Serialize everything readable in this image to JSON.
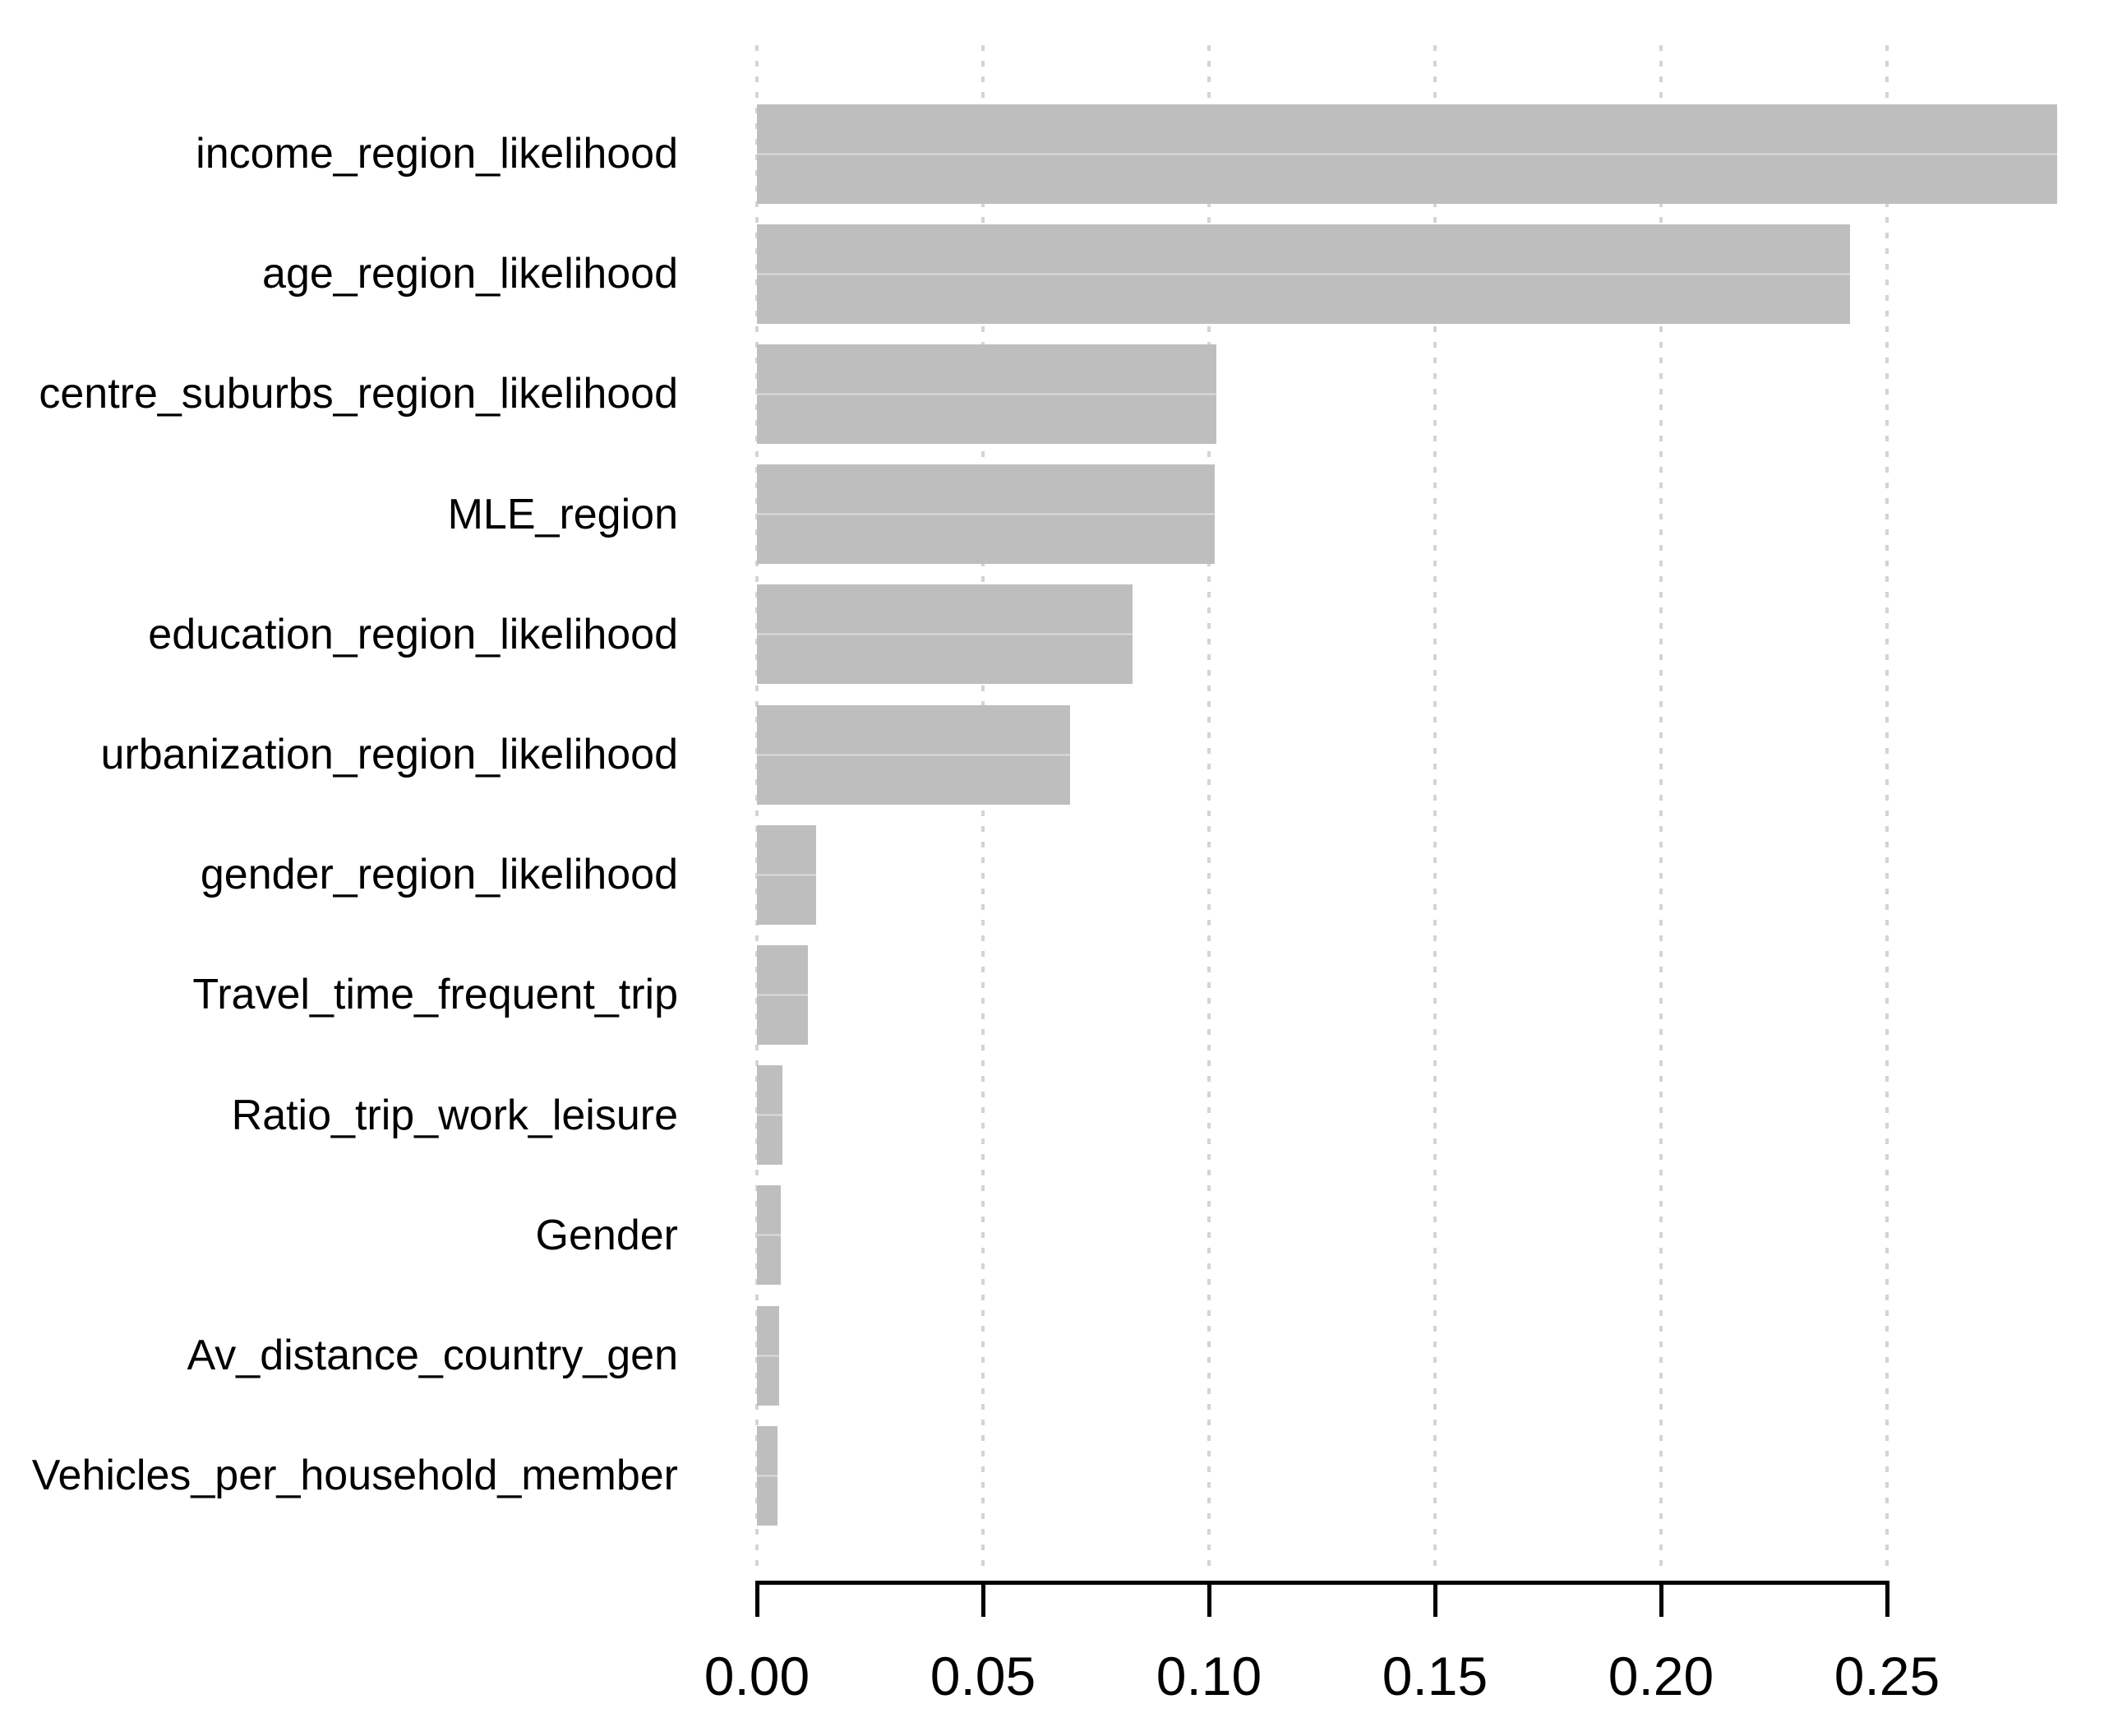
{
  "chart_data": {
    "type": "bar",
    "orientation": "horizontal",
    "categories": [
      "income_region_likelihood",
      "age_region_likelihood",
      "centre_suburbs_region_likelihood",
      "MLE_region",
      "education_region_likelihood",
      "urbanization_region_likelihood",
      "gender_region_likelihood",
      "Travel_time_frequent_trip",
      "Ratio_trip_work_leisure",
      "Gender",
      "Av_distance_country_gen",
      "Vehicles_per_household_member"
    ],
    "values": [
      0.2877,
      0.2418,
      0.1016,
      0.1012,
      0.0831,
      0.0693,
      0.0131,
      0.0113,
      0.0057,
      0.0053,
      0.0049,
      0.0045
    ],
    "x_axis": {
      "tick_values": [
        0.0,
        0.05,
        0.1,
        0.15,
        0.2,
        0.25
      ],
      "tick_labels": [
        "0.00",
        "0.05",
        "0.10",
        "0.15",
        "0.20",
        "0.25"
      ],
      "range": [
        0.0,
        0.303
      ]
    },
    "title": "",
    "xlabel": "",
    "ylabel": "",
    "grid": "vertical-dashed-at-ticks",
    "legend": "none",
    "colors": {
      "bar_fill": "#bebebe",
      "bar_midline": "#dcdcdc",
      "gridline": "#d4d4d4",
      "axis": "#000000",
      "text": "#000000",
      "background": "#ffffff"
    }
  }
}
